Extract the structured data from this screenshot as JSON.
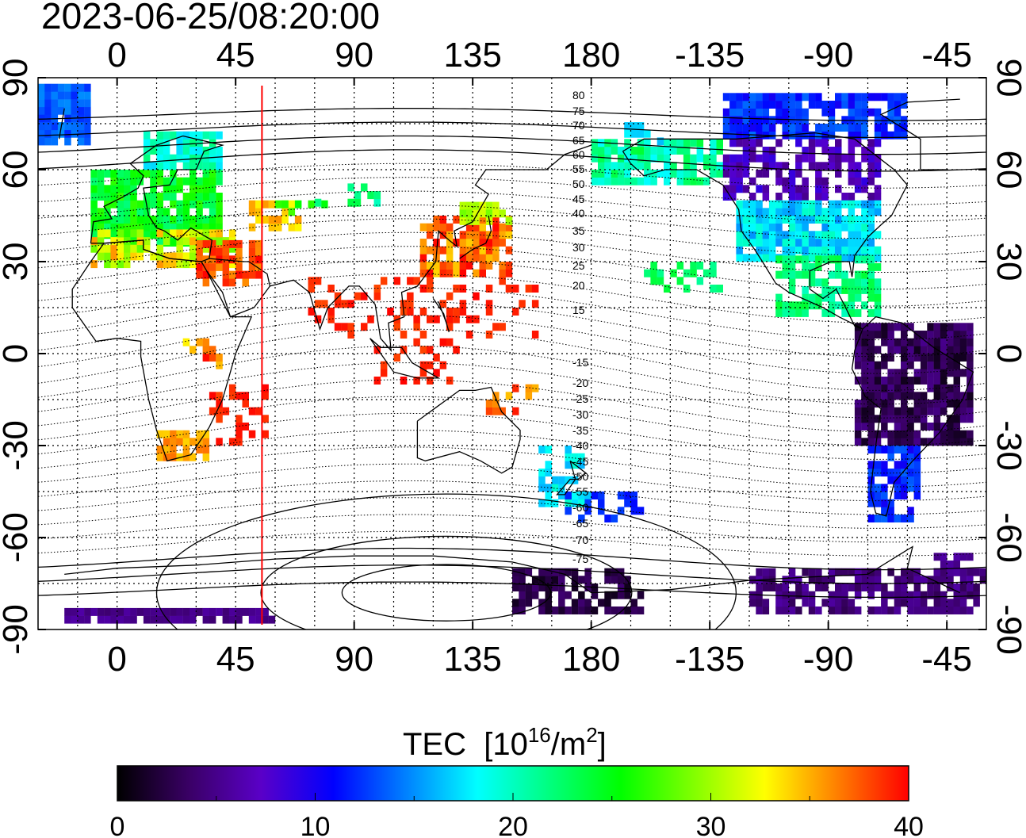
{
  "header": {
    "timestamp": "2023-06-25/08:20:00"
  },
  "map": {
    "projection": "equirectangular",
    "lon_center": 150,
    "lon_ticks_top": [
      "0",
      "45",
      "90",
      "135",
      "180",
      "-135",
      "-90",
      "-45"
    ],
    "lon_ticks_bottom": [
      "0",
      "45",
      "90",
      "135",
      "180",
      "-135",
      "-90",
      "-45"
    ],
    "lat_ticks_left": [
      "90",
      "60",
      "30",
      "0",
      "-30",
      "-60",
      "-90"
    ],
    "lat_ticks_right": [
      "90",
      "60",
      "30",
      "0",
      "-30",
      "-60",
      "-90"
    ],
    "grid": true,
    "terminator_line": {
      "lon": 55,
      "color": "#ff0000"
    },
    "contour_labels": [
      "80",
      "75",
      "70",
      "65",
      "60",
      "55",
      "50",
      "45",
      "40",
      "35",
      "30",
      "25",
      "20",
      "15",
      "-15",
      "-20",
      "-25",
      "-30",
      "-35",
      "-40",
      "-45",
      "-50",
      "-55",
      "-60",
      "-65",
      "-70",
      "-75"
    ]
  },
  "colorbar": {
    "title": "TEC",
    "unit_prefix": "[10",
    "unit_exp": "16",
    "unit_mid": "/m",
    "unit_exp2": "2",
    "unit_suffix": "]",
    "min": 0,
    "max": 40,
    "tick_labels": [
      "0",
      "10",
      "20",
      "30",
      "40"
    ],
    "colors": [
      "#000000",
      "#3a0066",
      "#5a00c8",
      "#0000ff",
      "#0080ff",
      "#00ffff",
      "#00ff80",
      "#00ff00",
      "#80ff00",
      "#ffff00",
      "#ff8000",
      "#ff0000"
    ]
  }
}
